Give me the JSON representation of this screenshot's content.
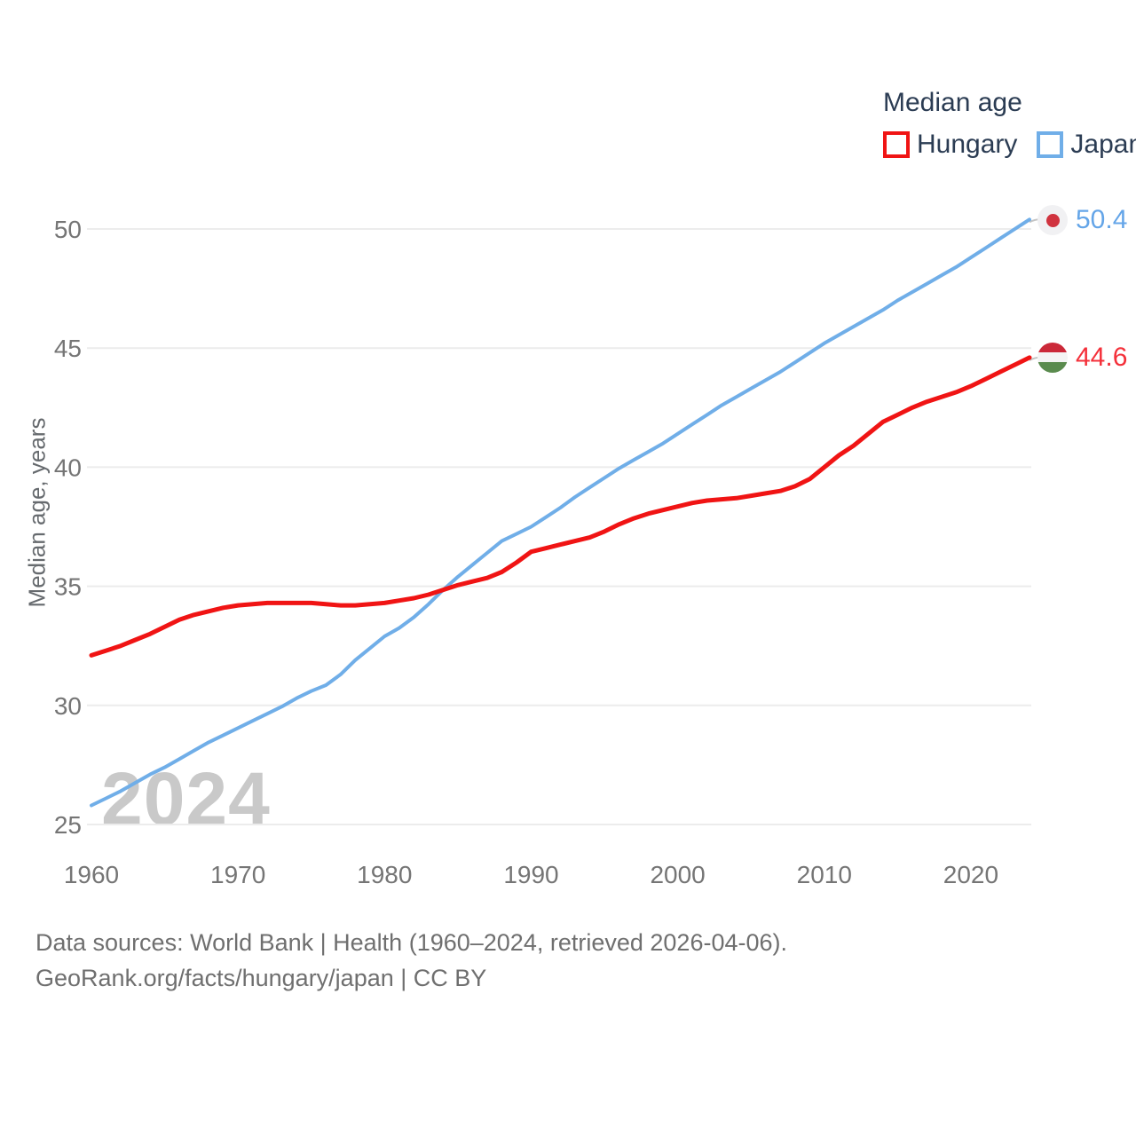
{
  "chart_data": {
    "type": "line",
    "title": "Median age",
    "ylabel": "Median age, years",
    "xlabel": "",
    "grid": "horizontal",
    "legend_position": "top-right",
    "xlim": [
      1960,
      2024
    ],
    "ylim": [
      25,
      50.4
    ],
    "x_ticks": [
      1960,
      1970,
      1980,
      1990,
      2000,
      2010,
      2020
    ],
    "y_ticks": [
      25,
      30,
      35,
      40,
      45,
      50
    ],
    "years": [
      1960,
      1961,
      1962,
      1963,
      1964,
      1965,
      1966,
      1967,
      1968,
      1969,
      1970,
      1971,
      1972,
      1973,
      1974,
      1975,
      1976,
      1977,
      1978,
      1979,
      1980,
      1981,
      1982,
      1983,
      1984,
      1985,
      1986,
      1987,
      1988,
      1989,
      1990,
      1991,
      1992,
      1993,
      1994,
      1995,
      1996,
      1997,
      1998,
      1999,
      2000,
      2001,
      2002,
      2003,
      2004,
      2005,
      2006,
      2007,
      2008,
      2009,
      2010,
      2011,
      2012,
      2013,
      2014,
      2015,
      2016,
      2017,
      2018,
      2019,
      2020,
      2021,
      2022,
      2023,
      2024
    ],
    "series": [
      {
        "name": "Hungary",
        "color": "#f01414",
        "end_label": "44.6",
        "end_value": 44.6,
        "flag": "hungary-flag-icon",
        "values": [
          32.1,
          32.3,
          32.5,
          32.75,
          33.0,
          33.3,
          33.6,
          33.8,
          33.95,
          34.1,
          34.2,
          34.25,
          34.3,
          34.3,
          34.3,
          34.3,
          34.25,
          34.2,
          34.2,
          34.25,
          34.3,
          34.4,
          34.5,
          34.65,
          34.85,
          35.05,
          35.2,
          35.35,
          35.6,
          36.0,
          36.45,
          36.6,
          36.75,
          36.9,
          37.05,
          37.3,
          37.6,
          37.85,
          38.05,
          38.2,
          38.35,
          38.5,
          38.6,
          38.65,
          38.7,
          38.8,
          38.9,
          39.0,
          39.2,
          39.5,
          40.0,
          40.5,
          40.9,
          41.4,
          41.9,
          42.2,
          42.5,
          42.75,
          42.95,
          43.15,
          43.4,
          43.7,
          44.0,
          44.3,
          44.6
        ]
      },
      {
        "name": "Japan",
        "color": "#70aee8",
        "end_label": "50.4",
        "end_value": 50.4,
        "flag": "japan-flag-icon",
        "values": [
          25.8,
          26.1,
          26.4,
          26.75,
          27.1,
          27.4,
          27.75,
          28.1,
          28.45,
          28.75,
          29.05,
          29.35,
          29.65,
          29.95,
          30.3,
          30.6,
          30.85,
          31.3,
          31.9,
          32.4,
          32.9,
          33.25,
          33.7,
          34.25,
          34.85,
          35.4,
          35.9,
          36.4,
          36.9,
          37.2,
          37.5,
          37.9,
          38.3,
          38.75,
          39.15,
          39.55,
          39.95,
          40.3,
          40.65,
          41.0,
          41.4,
          41.8,
          42.2,
          42.6,
          42.95,
          43.3,
          43.65,
          44.0,
          44.4,
          44.8,
          45.2,
          45.55,
          45.9,
          46.25,
          46.6,
          47.0,
          47.35,
          47.7,
          48.05,
          48.4,
          48.8,
          49.2,
          49.6,
          50.0,
          50.4
        ]
      }
    ]
  },
  "legend": {
    "title": "Median age",
    "items": [
      {
        "label": "Hungary",
        "color": "#f01414"
      },
      {
        "label": "Japan",
        "color": "#70aee8"
      }
    ]
  },
  "end_labels": {
    "japan": "50.4",
    "hungary": "44.6"
  },
  "axis": {
    "y_title": "Median age, years"
  },
  "watermark": "2024",
  "caption": {
    "line1": "Data sources: World Bank | Health (1960–2024, retrieved 2026-04-06).",
    "line2": "GeoRank.org/facts/hungary/japan | CC BY"
  },
  "colors": {
    "hungary_line": "#f01414",
    "japan_line": "#70aee8",
    "hungary_label": "#f4303a",
    "japan_label": "#64a5e8",
    "legend_text": "#2b3c53",
    "tick_text": "#757575",
    "caption_text": "#6f6f6f",
    "gridline": "#ececec",
    "watermark": "#c9c9c9",
    "flag_japan_dot": "#d0333f",
    "flag_hungary_red": "#cb2939",
    "flag_hungary_green": "#5a8b4e",
    "connector": "#c4c4c4"
  }
}
